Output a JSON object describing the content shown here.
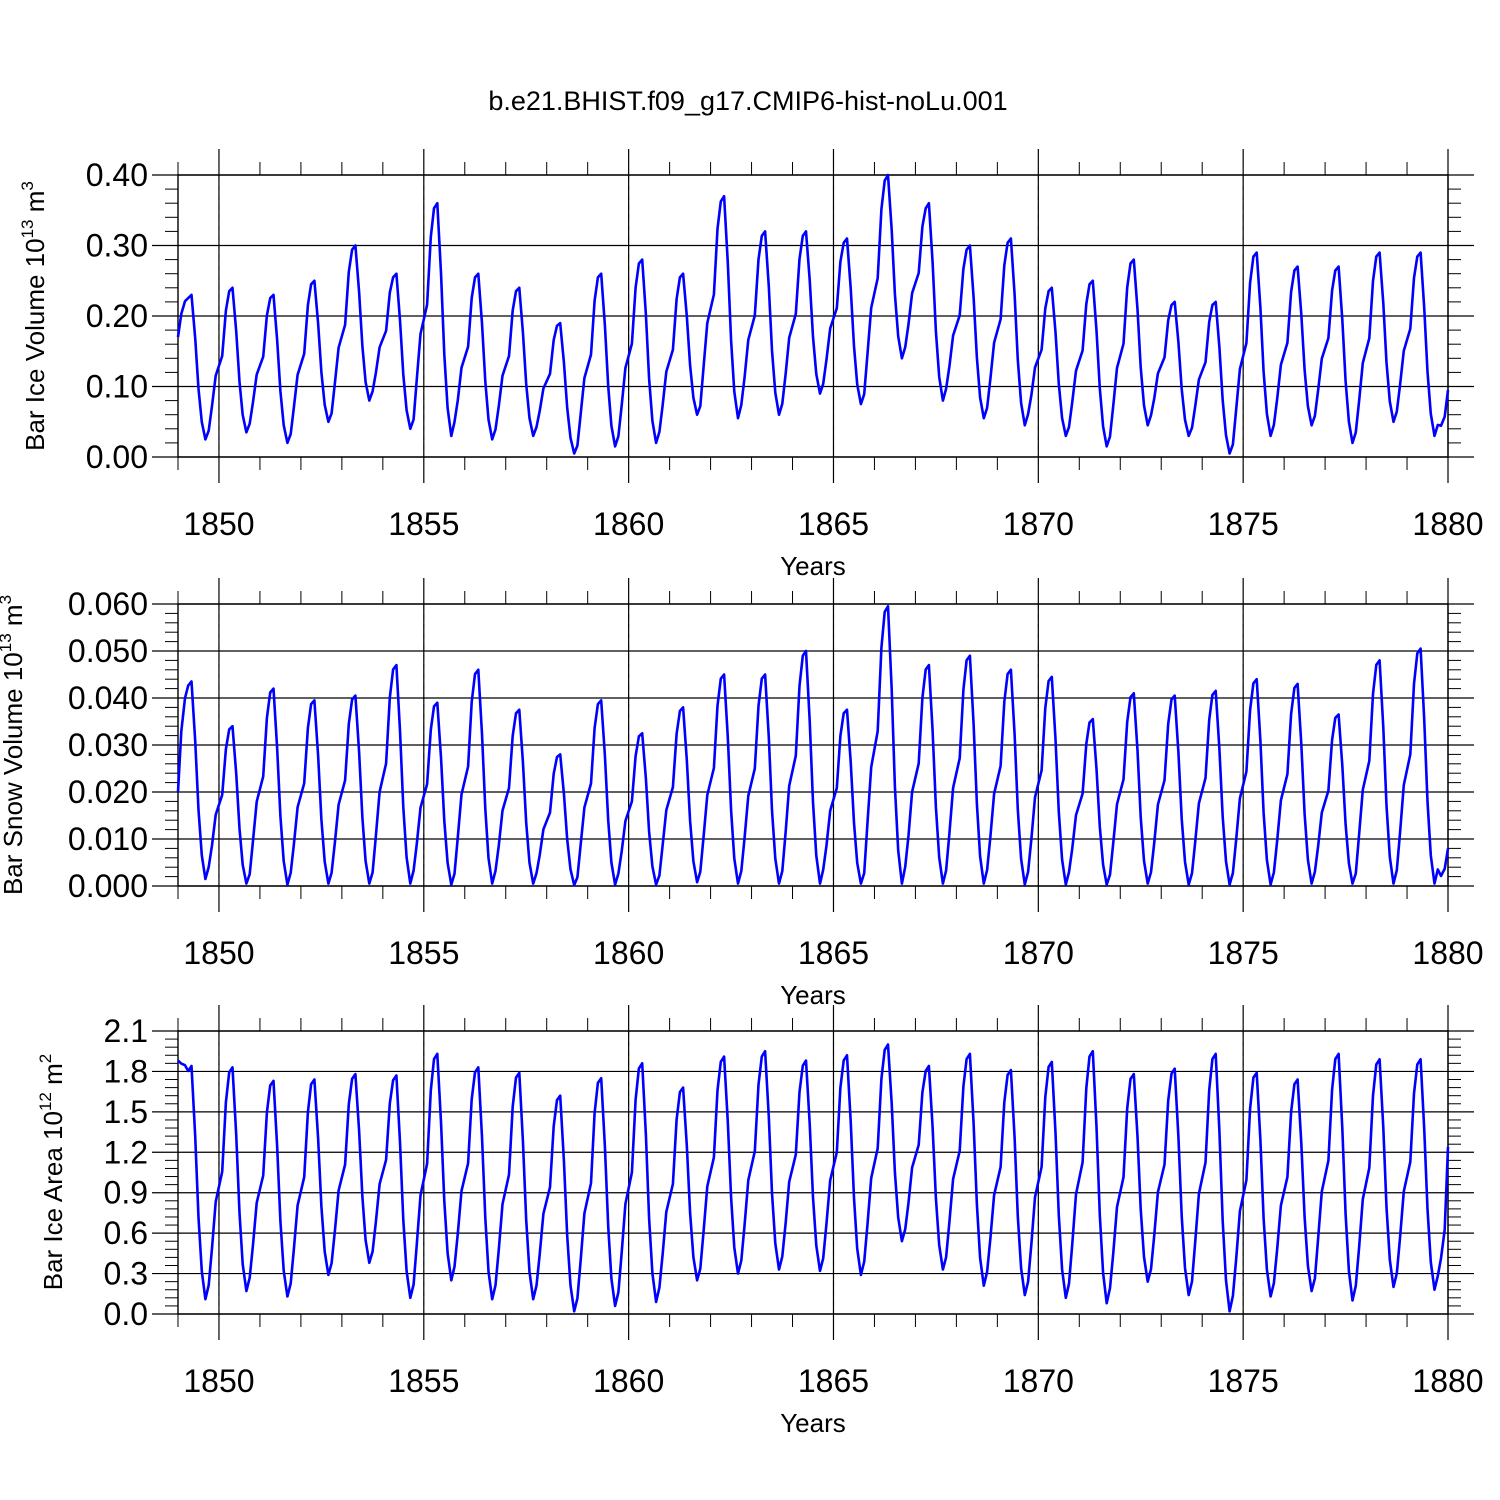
{
  "title": "b.e21.BHIST.f09_g17.CMIP6-hist-noLu.001",
  "line_color": "#0000ff",
  "chart_data": [
    {
      "type": "line",
      "ylabel": "Bar Ice Volume 10",
      "ylabel_sup": "13",
      "ylabel_unit": "m",
      "ylabel_unit_sup": "3",
      "xlabel": "Years",
      "xlim": [
        1849.0,
        1880.0
      ],
      "ylim": [
        0.0,
        0.4
      ],
      "xticks": [
        1850,
        1855,
        1860,
        1865,
        1870,
        1875,
        1880
      ],
      "yticks": [
        0.0,
        0.1,
        0.2,
        0.3,
        0.4
      ],
      "ytick_labels": [
        "0.00",
        "0.10",
        "0.20",
        "0.30",
        "0.40"
      ],
      "peaks": [
        0.23,
        0.24,
        0.23,
        0.25,
        0.3,
        0.26,
        0.36,
        0.26,
        0.24,
        0.19,
        0.26,
        0.28,
        0.26,
        0.37,
        0.32,
        0.32,
        0.31,
        0.4,
        0.36,
        0.3,
        0.31,
        0.24,
        0.25,
        0.28,
        0.22,
        0.22,
        0.29,
        0.27,
        0.27,
        0.29,
        0.29
      ],
      "troughs": [
        0.025,
        0.035,
        0.02,
        0.05,
        0.08,
        0.04,
        0.03,
        0.025,
        0.03,
        0.005,
        0.015,
        0.02,
        0.06,
        0.055,
        0.06,
        0.09,
        0.075,
        0.14,
        0.08,
        0.055,
        0.045,
        0.03,
        0.015,
        0.045,
        0.03,
        0.005,
        0.03,
        0.045,
        0.02,
        0.05,
        0.03
      ],
      "start": 0.17,
      "end": 0.095
    },
    {
      "type": "line",
      "ylabel": "Bar Snow Volume 10",
      "ylabel_sup": "13",
      "ylabel_unit": "m",
      "ylabel_unit_sup": "3",
      "xlabel": "Years",
      "xlim": [
        1849.0,
        1880.0
      ],
      "ylim": [
        0.0,
        0.06
      ],
      "xticks": [
        1850,
        1855,
        1860,
        1865,
        1870,
        1875,
        1880
      ],
      "yticks": [
        0.0,
        0.01,
        0.02,
        0.03,
        0.04,
        0.05,
        0.06
      ],
      "ytick_labels": [
        "0.000",
        "0.010",
        "0.020",
        "0.030",
        "0.040",
        "0.050",
        "0.060"
      ],
      "peaks": [
        0.0435,
        0.034,
        0.042,
        0.0395,
        0.0405,
        0.047,
        0.039,
        0.046,
        0.0375,
        0.028,
        0.0395,
        0.0325,
        0.038,
        0.045,
        0.045,
        0.05,
        0.0375,
        0.0595,
        0.047,
        0.049,
        0.046,
        0.0445,
        0.0355,
        0.041,
        0.0405,
        0.0415,
        0.044,
        0.043,
        0.0365,
        0.048,
        0.0505
      ],
      "troughs": [
        0.0015,
        0.0005,
        0.0003,
        0.0005,
        0.0005,
        0.0005,
        0.0003,
        0.0005,
        0.0005,
        0.0002,
        0.0003,
        0.0003,
        0.0008,
        0.0005,
        0.0005,
        0.0005,
        0.0005,
        0.0005,
        0.0005,
        0.0005,
        0.0003,
        0.0003,
        0.0003,
        0.0005,
        0.0003,
        0.0003,
        0.0003,
        0.0005,
        0.0005,
        0.0005,
        0.0005
      ],
      "start": 0.02,
      "end": 0.008
    },
    {
      "type": "line",
      "ylabel": "Bar Ice Area 10",
      "ylabel_sup": "12",
      "ylabel_unit": "m",
      "ylabel_unit_sup": "2",
      "xlabel": "Years",
      "xlim": [
        1849.0,
        1880.0
      ],
      "ylim": [
        0.0,
        2.1
      ],
      "xticks": [
        1850,
        1855,
        1860,
        1865,
        1870,
        1875,
        1880
      ],
      "yticks": [
        0.0,
        0.3,
        0.6,
        0.9,
        1.2,
        1.5,
        1.8,
        2.1
      ],
      "ytick_labels": [
        "0.0",
        "0.3",
        "0.6",
        "0.9",
        "1.2",
        "1.5",
        "1.8",
        "2.1"
      ],
      "peaks": [
        1.84,
        1.83,
        1.73,
        1.74,
        1.78,
        1.77,
        1.93,
        1.83,
        1.79,
        1.62,
        1.75,
        1.86,
        1.68,
        1.91,
        1.95,
        1.88,
        1.92,
        2.0,
        1.84,
        1.93,
        1.81,
        1.87,
        1.95,
        1.78,
        1.82,
        1.93,
        1.79,
        1.74,
        1.93,
        1.89,
        1.89
      ],
      "troughs": [
        0.11,
        0.17,
        0.13,
        0.29,
        0.38,
        0.12,
        0.25,
        0.11,
        0.11,
        0.02,
        0.06,
        0.09,
        0.25,
        0.3,
        0.33,
        0.32,
        0.29,
        0.54,
        0.33,
        0.21,
        0.14,
        0.12,
        0.08,
        0.24,
        0.14,
        0.02,
        0.13,
        0.17,
        0.1,
        0.2,
        0.18
      ],
      "start": 1.88,
      "end": 1.24
    }
  ]
}
